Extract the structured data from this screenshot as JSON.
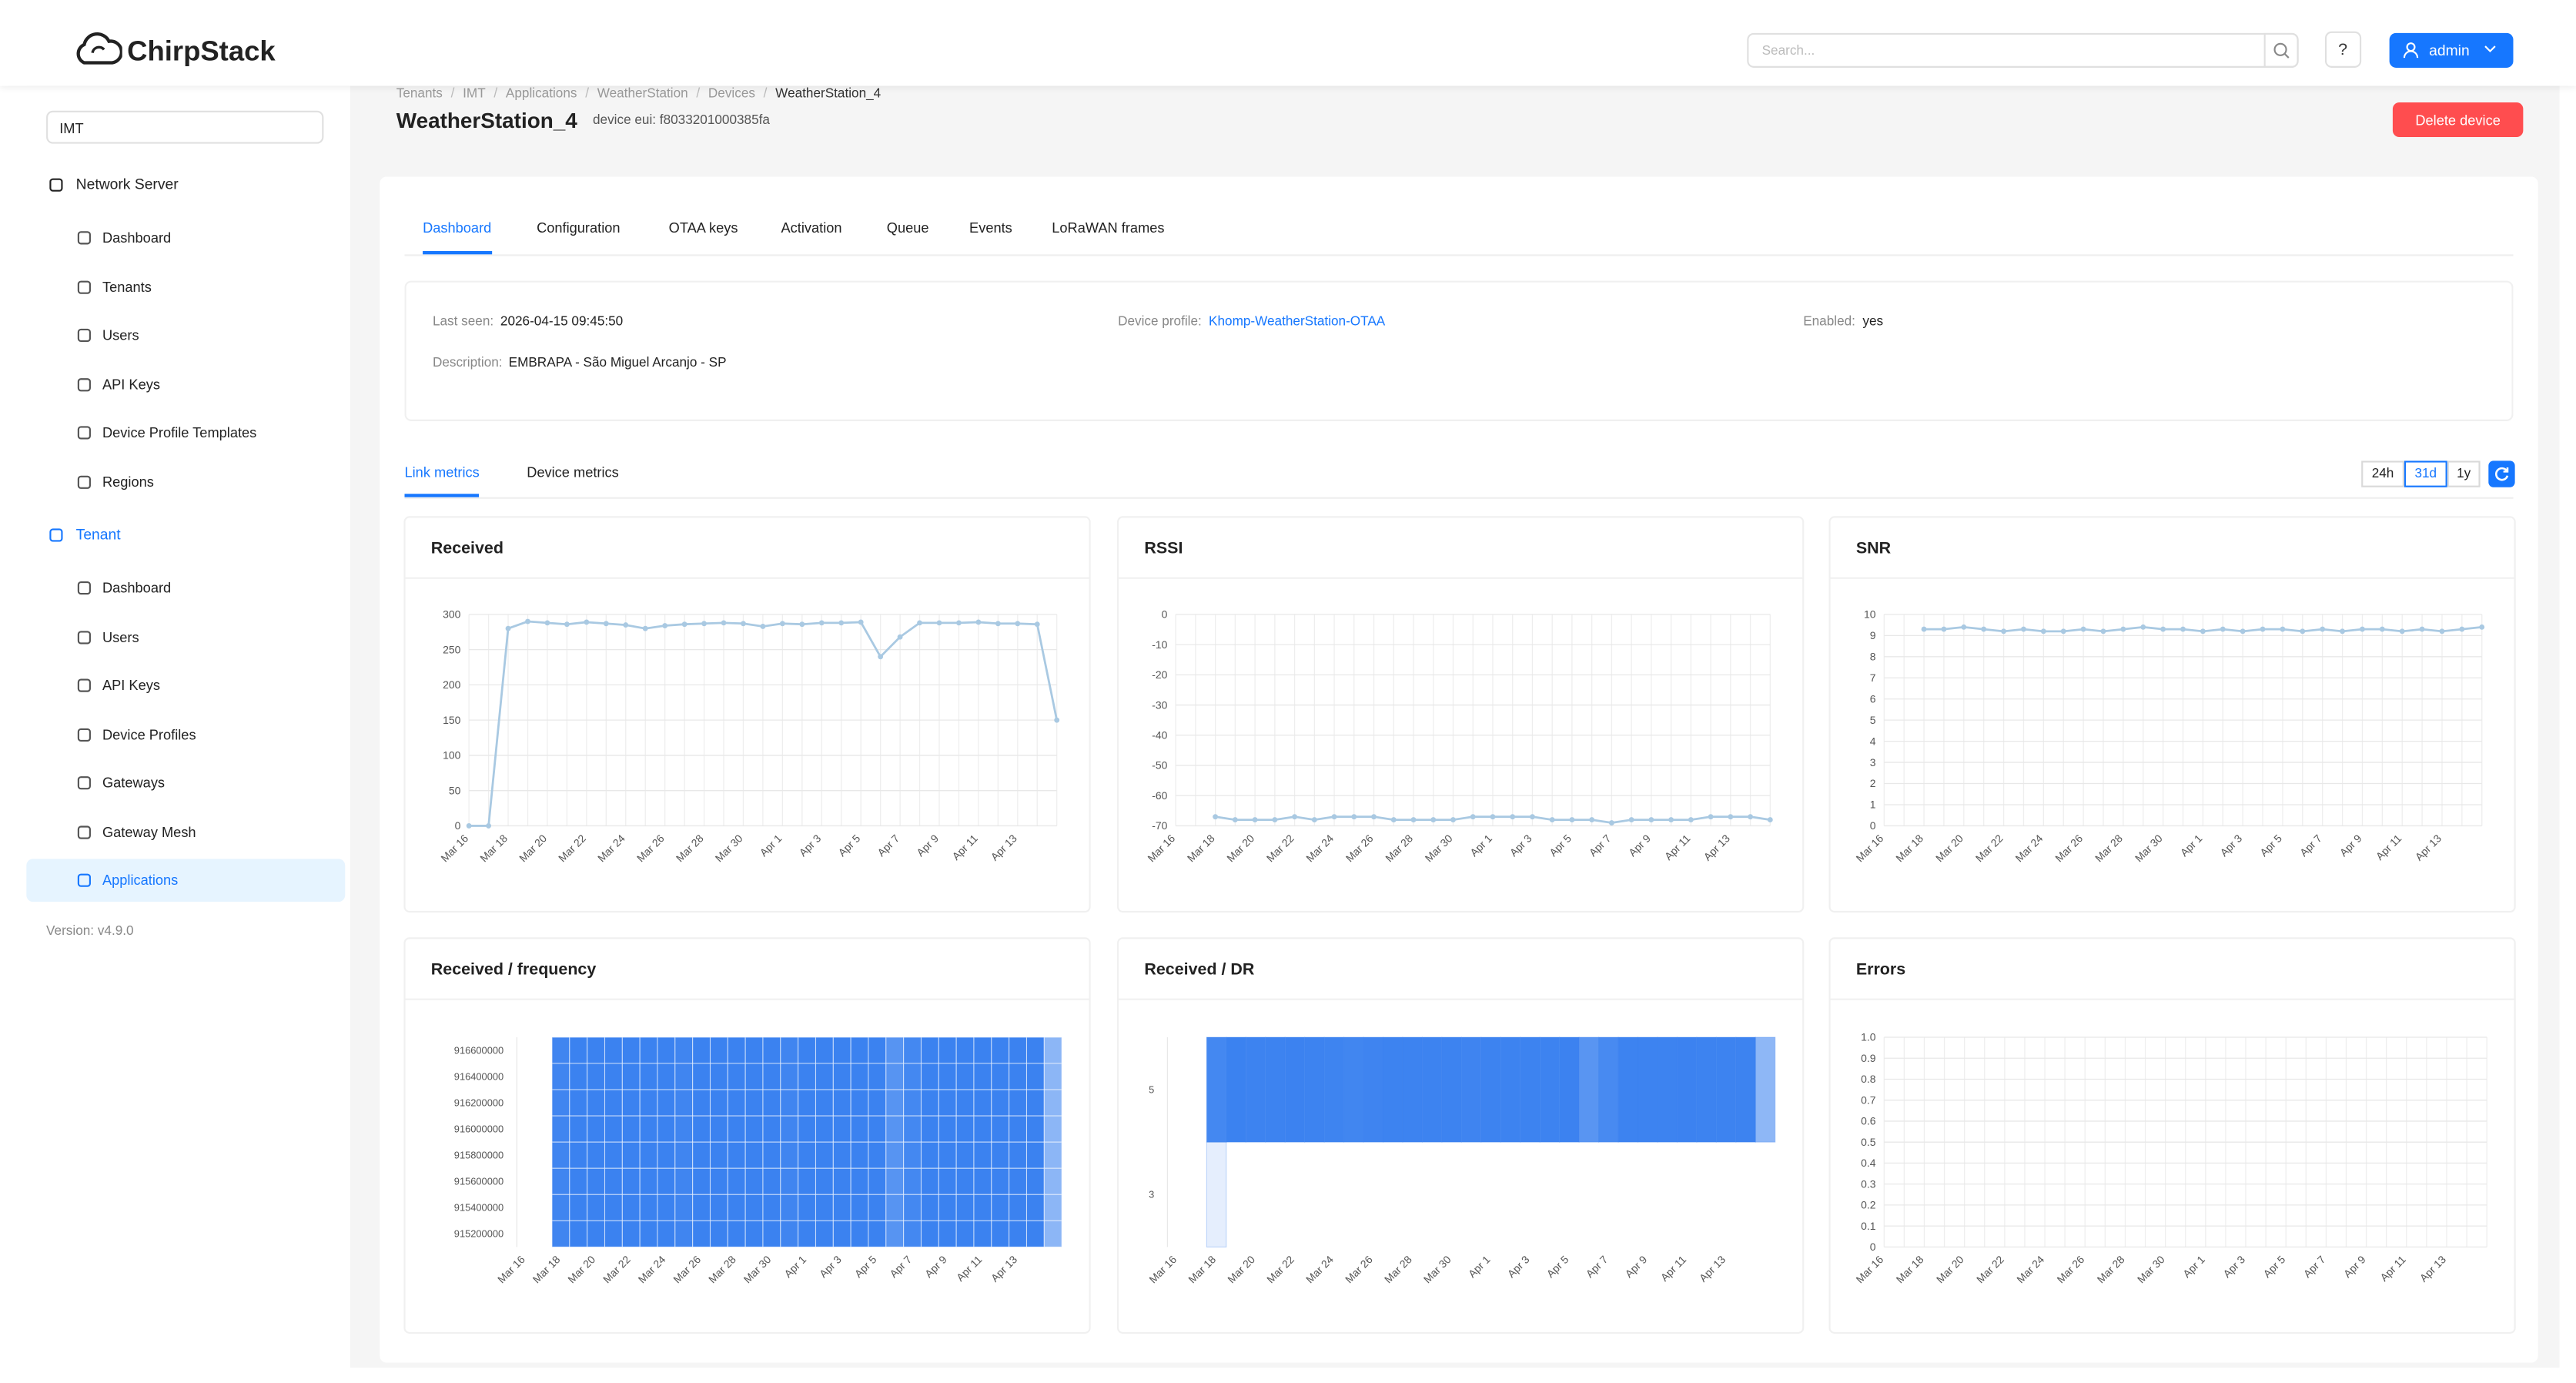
{
  "header": {
    "logo": "ChirpStack",
    "search_placeholder": "Search...",
    "help": "?",
    "user": "admin"
  },
  "sidebar": {
    "tenant": "IMT",
    "network_server": {
      "title": "Network Server",
      "items": [
        "Dashboard",
        "Tenants",
        "Users",
        "API Keys",
        "Device Profile Templates",
        "Regions"
      ]
    },
    "tenant_section": {
      "title": "Tenant",
      "items": [
        "Dashboard",
        "Users",
        "API Keys",
        "Device Profiles",
        "Gateways",
        "Gateway Mesh",
        "Applications"
      ],
      "selected_index": 6
    },
    "version": "Version: v4.9.0"
  },
  "breadcrumb": [
    "Tenants",
    "IMT",
    "Applications",
    "WeatherStation",
    "Devices",
    "WeatherStation_4"
  ],
  "device": {
    "name": "WeatherStation_4",
    "eui": "device eui: f8033201000385fa",
    "delete": "Delete device"
  },
  "tabs": {
    "items": [
      "Dashboard",
      "Configuration",
      "OTAA keys",
      "Activation",
      "Queue",
      "Events",
      "LoRaWAN frames"
    ],
    "active": 0
  },
  "details": {
    "last_seen": {
      "label": "Last seen:",
      "value": "2026-04-15 09:45:50"
    },
    "device_profile": {
      "label": "Device profile:",
      "value": "Khomp-WeatherStation-OTAA"
    },
    "enabled": {
      "label": "Enabled:",
      "value": "yes"
    },
    "description": {
      "label": "Description:",
      "value": "EMBRAPA - São Miguel Arcanjo - SP"
    }
  },
  "metrics": {
    "tabs": [
      "Link metrics",
      "Device metrics"
    ],
    "active_tab": 0,
    "ranges": [
      "24h",
      "31d",
      "1y"
    ],
    "active_range": 1
  },
  "chart_data": [
    {
      "type": "line",
      "title": "Received",
      "color": "#a9c9e2",
      "categories": [
        "Mar 16",
        null,
        "Mar 18",
        null,
        "Mar 20",
        null,
        "Mar 22",
        null,
        "Mar 24",
        null,
        "Mar 26",
        null,
        "Mar 28",
        null,
        "Mar 30",
        null,
        "Apr 1",
        null,
        "Apr 3",
        null,
        "Apr 5",
        null,
        "Apr 7",
        null,
        "Apr 9",
        null,
        "Apr 11",
        null,
        "Apr 13",
        null,
        null
      ],
      "values": [
        0,
        0,
        280,
        290,
        288,
        286,
        289,
        287,
        285,
        280,
        284,
        286,
        287,
        288,
        287,
        283,
        287,
        286,
        288,
        288,
        289,
        240,
        268,
        288,
        288,
        288,
        289,
        287,
        287,
        286,
        150
      ],
      "ylim": [
        0,
        300
      ],
      "yticks": [
        0,
        50,
        100,
        150,
        200,
        250,
        300
      ],
      "grid": true
    },
    {
      "type": "line",
      "title": "RSSI",
      "color": "#a9c9e2",
      "categories": [
        "Mar 16",
        null,
        "Mar 18",
        null,
        "Mar 20",
        null,
        "Mar 22",
        null,
        "Mar 24",
        null,
        "Mar 26",
        null,
        "Mar 28",
        null,
        "Mar 30",
        null,
        "Apr 1",
        null,
        "Apr 3",
        null,
        "Apr 5",
        null,
        "Apr 7",
        null,
        "Apr 9",
        null,
        "Apr 11",
        null,
        "Apr 13",
        null,
        null
      ],
      "values": [
        null,
        null,
        -67,
        -68,
        -68,
        -68,
        -67,
        -68,
        -67,
        -67,
        -67,
        -68,
        -68,
        -68,
        -68,
        -67,
        -67,
        -67,
        -67,
        -68,
        -68,
        -68,
        -69,
        -68,
        -68,
        -68,
        -68,
        -67,
        -67,
        -67,
        -68
      ],
      "ylim": [
        -70,
        0
      ],
      "yticks": [
        -70,
        -60,
        -50,
        -40,
        -30,
        -20,
        -10,
        0
      ],
      "grid": true
    },
    {
      "type": "line",
      "title": "SNR",
      "color": "#a9c9e2",
      "categories": [
        "Mar 16",
        null,
        "Mar 18",
        null,
        "Mar 20",
        null,
        "Mar 22",
        null,
        "Mar 24",
        null,
        "Mar 26",
        null,
        "Mar 28",
        null,
        "Mar 30",
        null,
        "Apr 1",
        null,
        "Apr 3",
        null,
        "Apr 5",
        null,
        "Apr 7",
        null,
        "Apr 9",
        null,
        "Apr 11",
        null,
        "Apr 13",
        null,
        null
      ],
      "values": [
        null,
        null,
        9.3,
        9.3,
        9.4,
        9.3,
        9.2,
        9.3,
        9.2,
        9.2,
        9.3,
        9.2,
        9.3,
        9.4,
        9.3,
        9.3,
        9.2,
        9.3,
        9.2,
        9.3,
        9.3,
        9.2,
        9.3,
        9.2,
        9.3,
        9.3,
        9.2,
        9.3,
        9.2,
        9.3,
        9.4
      ],
      "ylim": [
        0,
        10
      ],
      "yticks": [
        0,
        1,
        2,
        3,
        4,
        5,
        6,
        7,
        8,
        9,
        10
      ],
      "grid": true
    },
    {
      "type": "heatmap",
      "title": "Received / frequency",
      "color": "#3b82f0",
      "categories": [
        "Mar 16",
        null,
        "Mar 18",
        null,
        "Mar 20",
        null,
        "Mar 22",
        null,
        "Mar 24",
        null,
        "Mar 26",
        null,
        "Mar 28",
        null,
        "Mar 30",
        null,
        "Apr 1",
        null,
        "Apr 3",
        null,
        "Apr 5",
        null,
        "Apr 7",
        null,
        "Apr 9",
        null,
        "Apr 11",
        null,
        "Apr 13",
        null,
        null
      ],
      "y_categories": [
        916600000,
        916400000,
        916200000,
        916000000,
        915800000,
        915600000,
        915400000,
        915200000
      ],
      "values": [
        [
          null,
          null,
          35,
          36,
          36,
          36,
          36,
          36,
          36,
          35,
          36,
          36,
          36,
          36,
          36,
          35,
          36,
          36,
          36,
          36,
          36,
          30,
          34,
          36,
          36,
          36,
          36,
          36,
          36,
          36,
          19
        ],
        [
          null,
          null,
          35,
          36,
          36,
          36,
          36,
          36,
          36,
          35,
          36,
          36,
          36,
          36,
          36,
          35,
          36,
          36,
          36,
          36,
          36,
          30,
          34,
          36,
          36,
          36,
          36,
          36,
          36,
          36,
          19
        ],
        [
          null,
          null,
          35,
          36,
          36,
          36,
          36,
          36,
          36,
          35,
          36,
          36,
          36,
          36,
          36,
          35,
          36,
          36,
          36,
          36,
          36,
          30,
          34,
          36,
          36,
          36,
          36,
          36,
          36,
          36,
          19
        ],
        [
          null,
          null,
          35,
          36,
          36,
          36,
          36,
          36,
          36,
          35,
          36,
          36,
          36,
          36,
          36,
          35,
          36,
          36,
          36,
          36,
          36,
          30,
          34,
          36,
          36,
          36,
          36,
          36,
          36,
          36,
          19
        ],
        [
          null,
          null,
          35,
          36,
          36,
          36,
          36,
          36,
          36,
          35,
          36,
          36,
          36,
          36,
          36,
          35,
          36,
          36,
          36,
          36,
          36,
          30,
          34,
          36,
          36,
          36,
          36,
          36,
          36,
          36,
          19
        ],
        [
          null,
          null,
          35,
          36,
          36,
          36,
          36,
          36,
          36,
          35,
          36,
          36,
          36,
          36,
          36,
          35,
          36,
          36,
          36,
          36,
          36,
          30,
          34,
          36,
          36,
          36,
          36,
          36,
          36,
          36,
          19
        ],
        [
          null,
          null,
          35,
          36,
          36,
          36,
          36,
          36,
          36,
          35,
          36,
          36,
          36,
          36,
          36,
          35,
          36,
          36,
          36,
          36,
          36,
          30,
          34,
          36,
          36,
          36,
          36,
          36,
          36,
          36,
          19
        ],
        [
          null,
          null,
          35,
          36,
          36,
          36,
          36,
          36,
          36,
          35,
          36,
          36,
          36,
          36,
          36,
          35,
          36,
          36,
          36,
          36,
          36,
          30,
          34,
          36,
          36,
          36,
          36,
          36,
          36,
          36,
          19
        ]
      ]
    },
    {
      "type": "heatmap",
      "title": "Received / DR",
      "color": "#3b82f0",
      "categories": [
        "Mar 16",
        null,
        "Mar 18",
        null,
        "Mar 20",
        null,
        "Mar 22",
        null,
        "Mar 24",
        null,
        "Mar 26",
        null,
        "Mar 28",
        null,
        "Mar 30",
        null,
        "Apr 1",
        null,
        "Apr 3",
        null,
        "Apr 5",
        null,
        "Apr 7",
        null,
        "Apr 9",
        null,
        "Apr 11",
        null,
        "Apr 13",
        null,
        null
      ],
      "y_categories": [
        5,
        3
      ],
      "values": [
        [
          null,
          null,
          275,
          290,
          288,
          286,
          289,
          287,
          285,
          280,
          284,
          286,
          287,
          288,
          287,
          283,
          287,
          286,
          288,
          288,
          289,
          240,
          268,
          288,
          288,
          288,
          289,
          287,
          287,
          286,
          150
        ],
        [
          null,
          null,
          5,
          null,
          null,
          null,
          null,
          null,
          null,
          null,
          null,
          null,
          null,
          null,
          null,
          null,
          null,
          null,
          null,
          null,
          null,
          null,
          null,
          null,
          null,
          null,
          null,
          null,
          null,
          null,
          null
        ]
      ]
    },
    {
      "type": "line",
      "title": "Errors",
      "color": "#a9c9e2",
      "categories": [
        "Mar 16",
        null,
        "Mar 18",
        null,
        "Mar 20",
        null,
        "Mar 22",
        null,
        "Mar 24",
        null,
        "Mar 26",
        null,
        "Mar 28",
        null,
        "Mar 30",
        null,
        "Apr 1",
        null,
        "Apr 3",
        null,
        "Apr 5",
        null,
        "Apr 7",
        null,
        "Apr 9",
        null,
        "Apr 11",
        null,
        "Apr 13",
        null,
        null
      ],
      "ylim": [
        0,
        1
      ],
      "yticks": [
        0,
        0.1,
        0.2,
        0.3,
        0.4,
        0.5,
        0.6,
        0.7,
        0.8,
        0.9,
        {
          "value": 1,
          "label": "1.0"
        }
      ],
      "grid": true
    }
  ]
}
